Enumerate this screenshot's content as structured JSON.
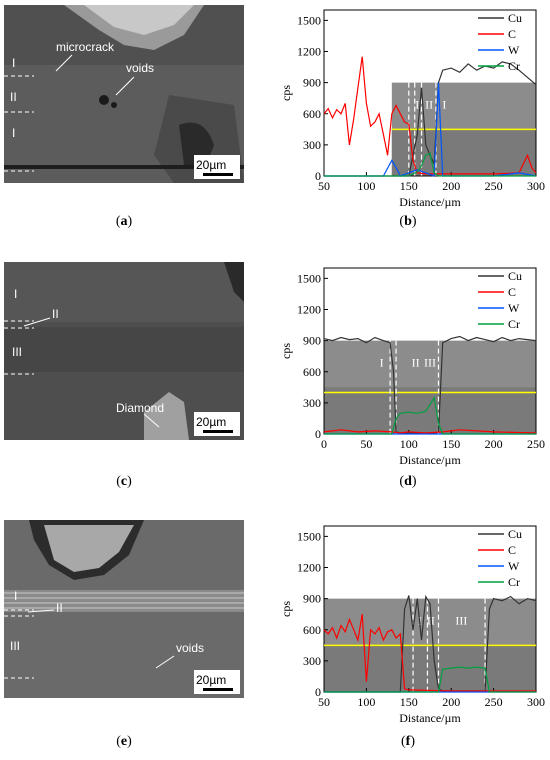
{
  "panels": {
    "a": {
      "caption_open": "(",
      "letter": "a",
      "caption_close": ")",
      "labels": [
        "I",
        "II",
        "I"
      ],
      "annotations": [
        "microcrack",
        "voids"
      ],
      "scalebar": "20µm"
    },
    "c": {
      "caption_open": "(",
      "letter": "c",
      "caption_close": ")",
      "labels": [
        "I",
        "II",
        "III"
      ],
      "annotations": [
        "Diamond"
      ],
      "scalebar": "20µm"
    },
    "e": {
      "caption_open": "(",
      "letter": "e",
      "caption_close": ")",
      "labels": [
        "I",
        "II",
        "III"
      ],
      "annotations": [
        "voids"
      ],
      "scalebar": "20µm"
    },
    "b": {
      "caption_open": "(",
      "letter": "b",
      "caption_close": ")"
    },
    "d": {
      "caption_open": "(",
      "letter": "d",
      "caption_close": ")"
    },
    "f": {
      "caption_open": "(",
      "letter": "f",
      "caption_close": ")"
    }
  },
  "colors": {
    "Cu": "#333333",
    "C": "#ff0000",
    "W": "#0055ff",
    "Cr": "#00a040",
    "mean": "#ffff00"
  },
  "chart_data": [
    {
      "id": "b",
      "type": "line",
      "xlabel": "Distance/µm",
      "ylabel": "cps",
      "xlim": [
        50,
        300
      ],
      "ylim": [
        0,
        1600
      ],
      "xticks": [
        50,
        100,
        150,
        200,
        250,
        300
      ],
      "yticks": [
        0,
        300,
        600,
        900,
        1200,
        1500
      ],
      "legend": [
        "Cu",
        "C",
        "W",
        "Cr"
      ],
      "legend_position": "top-right",
      "region_labels": [
        "I",
        "II",
        "I"
      ],
      "region_label_x": [
        160,
        174,
        192
      ],
      "dividers_x": [
        150,
        157,
        165,
        182
      ],
      "inset_x": [
        130,
        300
      ],
      "inset_y": [
        0,
        900
      ],
      "mean_line_y": 450,
      "series": [
        {
          "name": "Cu",
          "x": [
            50,
            100,
            150,
            155,
            160,
            165,
            170,
            175,
            180,
            185,
            190,
            200,
            210,
            220,
            230,
            240,
            250,
            260,
            270,
            280,
            290,
            300
          ],
          "y": [
            0,
            0,
            0,
            200,
            400,
            850,
            300,
            200,
            120,
            900,
            1020,
            1040,
            1000,
            1080,
            1020,
            1060,
            1040,
            1100,
            1080,
            1020,
            950,
            880
          ]
        },
        {
          "name": "C",
          "x": [
            50,
            55,
            60,
            65,
            70,
            75,
            80,
            85,
            90,
            95,
            100,
            105,
            110,
            115,
            120,
            125,
            130,
            135,
            140,
            145,
            150,
            155,
            160,
            170,
            180,
            200,
            250,
            280,
            290,
            295,
            300
          ],
          "y": [
            600,
            650,
            560,
            640,
            600,
            700,
            300,
            550,
            850,
            1150,
            700,
            480,
            520,
            600,
            400,
            200,
            600,
            680,
            600,
            520,
            500,
            150,
            30,
            20,
            20,
            20,
            20,
            30,
            200,
            80,
            30
          ]
        },
        {
          "name": "W",
          "x": [
            50,
            120,
            130,
            135,
            140,
            160,
            170,
            180,
            185,
            190,
            200,
            250,
            280,
            300
          ],
          "y": [
            0,
            0,
            150,
            80,
            0,
            60,
            30,
            0,
            900,
            0,
            0,
            0,
            30,
            0
          ]
        },
        {
          "name": "Cr",
          "x": [
            50,
            150,
            160,
            165,
            170,
            175,
            180,
            185,
            200,
            300
          ],
          "y": [
            0,
            0,
            40,
            100,
            200,
            220,
            30,
            0,
            0,
            0
          ]
        }
      ]
    },
    {
      "id": "d",
      "type": "line",
      "xlabel": "Distance/µm",
      "ylabel": "cps",
      "xlim": [
        0,
        250
      ],
      "ylim": [
        0,
        1600
      ],
      "xticks": [
        0,
        50,
        100,
        150,
        200,
        250
      ],
      "yticks": [
        0,
        300,
        600,
        900,
        1200,
        1500
      ],
      "legend": [
        "Cu",
        "C",
        "W",
        "Cr"
      ],
      "legend_position": "top-right",
      "region_labels": [
        "I",
        "II",
        "III"
      ],
      "region_label_x": [
        68,
        108,
        125
      ],
      "dividers_x": [
        78,
        85,
        135
      ],
      "inset_x": [
        0,
        250
      ],
      "inset_y": [
        0,
        900
      ],
      "mean_line_y": 400,
      "series": [
        {
          "name": "Cu",
          "x": [
            0,
            10,
            20,
            30,
            40,
            50,
            60,
            70,
            78,
            82,
            85,
            90,
            100,
            110,
            120,
            130,
            135,
            140,
            150,
            160,
            170,
            180,
            190,
            200,
            210,
            220,
            230,
            240,
            250
          ],
          "y": [
            920,
            900,
            930,
            910,
            920,
            880,
            930,
            900,
            880,
            600,
            20,
            10,
            10,
            10,
            10,
            10,
            20,
            880,
            920,
            940,
            900,
            930,
            910,
            890,
            930,
            900,
            920,
            910,
            900
          ]
        },
        {
          "name": "C",
          "x": [
            0,
            20,
            40,
            60,
            80,
            90,
            100,
            120,
            140,
            160,
            200,
            250
          ],
          "y": [
            20,
            40,
            20,
            30,
            20,
            10,
            20,
            10,
            20,
            40,
            20,
            10
          ]
        },
        {
          "name": "W",
          "x": [
            0,
            250
          ],
          "y": [
            0,
            0
          ]
        },
        {
          "name": "Cr",
          "x": [
            0,
            80,
            85,
            90,
            100,
            110,
            120,
            130,
            135,
            140,
            250
          ],
          "y": [
            0,
            0,
            150,
            200,
            210,
            200,
            220,
            350,
            100,
            0,
            0
          ]
        }
      ]
    },
    {
      "id": "f",
      "type": "line",
      "xlabel": "Distance/µm",
      "ylabel": "cps",
      "xlim": [
        50,
        300
      ],
      "ylim": [
        0,
        1600
      ],
      "xticks": [
        50,
        100,
        150,
        200,
        250,
        300
      ],
      "yticks": [
        0,
        300,
        600,
        900,
        1200,
        1500
      ],
      "legend": [
        "Cu",
        "C",
        "W",
        "Cr"
      ],
      "legend_position": "top-right",
      "region_labels": [
        "I",
        "II",
        "III"
      ],
      "region_label_x": [
        163,
        176,
        212
      ],
      "dividers_x": [
        155,
        172,
        185,
        240
      ],
      "inset_x": [
        50,
        300
      ],
      "inset_y": [
        0,
        900
      ],
      "mean_line_y": 450,
      "series": [
        {
          "name": "Cu",
          "x": [
            50,
            140,
            145,
            150,
            155,
            160,
            165,
            170,
            175,
            180,
            185,
            190,
            200,
            240,
            245,
            250,
            260,
            270,
            280,
            290,
            300
          ],
          "y": [
            0,
            0,
            800,
            930,
            600,
            900,
            500,
            920,
            850,
            300,
            30,
            10,
            10,
            10,
            800,
            900,
            880,
            920,
            850,
            900,
            880
          ]
        },
        {
          "name": "C",
          "x": [
            50,
            55,
            60,
            65,
            70,
            75,
            80,
            85,
            90,
            95,
            100,
            105,
            110,
            115,
            120,
            125,
            130,
            135,
            140,
            145,
            150,
            200,
            300
          ],
          "y": [
            600,
            560,
            620,
            520,
            640,
            580,
            700,
            600,
            500,
            750,
            100,
            600,
            560,
            620,
            500,
            580,
            600,
            520,
            560,
            30,
            20,
            10,
            10
          ]
        },
        {
          "name": "W",
          "x": [
            50,
            300
          ],
          "y": [
            0,
            0
          ]
        },
        {
          "name": "Cr",
          "x": [
            50,
            185,
            190,
            200,
            210,
            220,
            230,
            240,
            245,
            300
          ],
          "y": [
            0,
            0,
            220,
            230,
            240,
            230,
            240,
            230,
            0,
            0
          ]
        }
      ]
    }
  ]
}
